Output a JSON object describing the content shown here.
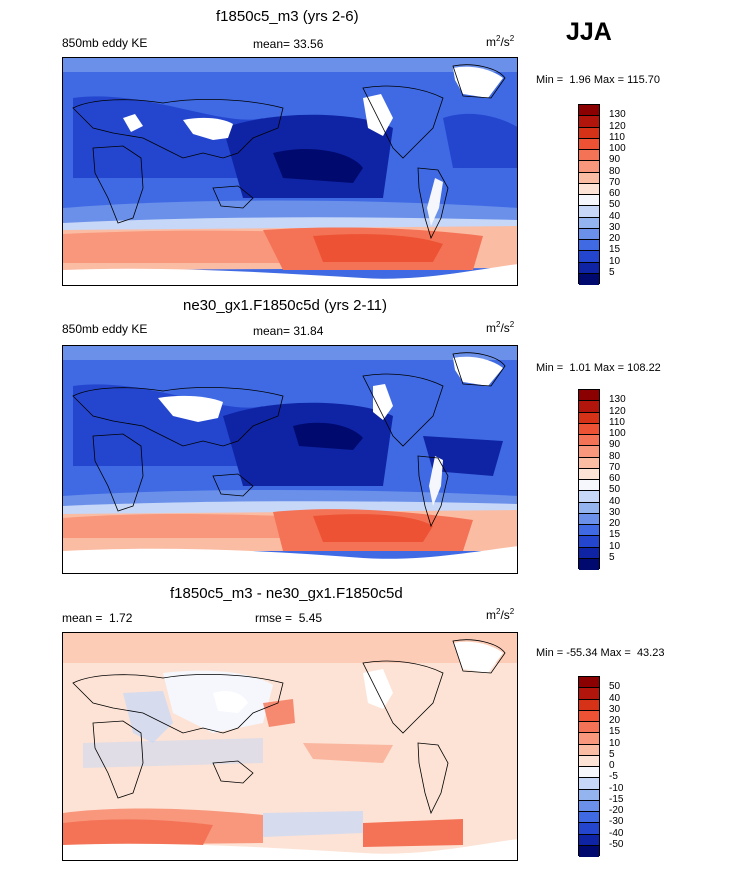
{
  "season": "JJA",
  "panels": [
    {
      "title": "f1850c5_m3 (yrs 2-6)",
      "variable": "850mb eddy KE",
      "mean_label": "mean=",
      "mean_value": "33.56",
      "units_base": "m",
      "units_sup1": "2",
      "units_mid": "/s",
      "units_sup2": "2",
      "min_label": "Min =",
      "min_value": "1.96",
      "max_label": "Max =",
      "max_value": "115.70",
      "colorbar": {
        "ticks": [
          "130",
          "120",
          "110",
          "100",
          "90",
          "80",
          "70",
          "60",
          "50",
          "40",
          "30",
          "20",
          "15",
          "10",
          "5"
        ],
        "colors": [
          "#8b0000",
          "#b2150b",
          "#d63218",
          "#ec5233",
          "#f47356",
          "#f8977c",
          "#fbbca4",
          "#fde3d5",
          "#f5f7fd",
          "#c6d7f8",
          "#94b4f0",
          "#6b90ea",
          "#3f6ae4",
          "#2446cf",
          "#0f24a4",
          "#000a6e"
        ]
      }
    },
    {
      "title": "ne30_gx1.F1850c5d (yrs 2-11)",
      "variable": "850mb eddy KE",
      "mean_label": "mean=",
      "mean_value": "31.84",
      "units_base": "m",
      "units_sup1": "2",
      "units_mid": "/s",
      "units_sup2": "2",
      "min_label": "Min =",
      "min_value": "1.01",
      "max_label": "Max =",
      "max_value": "108.22",
      "colorbar": {
        "ticks": [
          "130",
          "120",
          "110",
          "100",
          "90",
          "80",
          "70",
          "60",
          "50",
          "40",
          "30",
          "20",
          "15",
          "10",
          "5"
        ],
        "colors": [
          "#8b0000",
          "#b2150b",
          "#d63218",
          "#ec5233",
          "#f47356",
          "#f8977c",
          "#fbbca4",
          "#fde3d5",
          "#f5f7fd",
          "#c6d7f8",
          "#94b4f0",
          "#6b90ea",
          "#3f6ae4",
          "#2446cf",
          "#0f24a4",
          "#000a6e"
        ]
      }
    },
    {
      "title": "f1850c5_m3 - ne30_gx1.F1850c5d",
      "mean_label": "mean =",
      "mean_value": "1.72",
      "rmse_label": "rmse =",
      "rmse_value": "5.45",
      "units_base": "m",
      "units_sup1": "2",
      "units_mid": "/s",
      "units_sup2": "2",
      "min_label": "Min =",
      "min_value": "-55.34",
      "max_label": "Max =",
      "max_value": "43.23",
      "colorbar": {
        "ticks": [
          "50",
          "40",
          "30",
          "20",
          "15",
          "10",
          "5",
          "0",
          "-5",
          "-10",
          "-15",
          "-20",
          "-30",
          "-40",
          "-50"
        ],
        "colors": [
          "#8b0000",
          "#b2150b",
          "#d63218",
          "#ec5233",
          "#f47356",
          "#f8977c",
          "#fbbca4",
          "#fde3d5",
          "#f5f7fd",
          "#c6d7f8",
          "#94b4f0",
          "#6b90ea",
          "#3f6ae4",
          "#2446cf",
          "#0f24a4",
          "#000a6e"
        ]
      }
    }
  ]
}
